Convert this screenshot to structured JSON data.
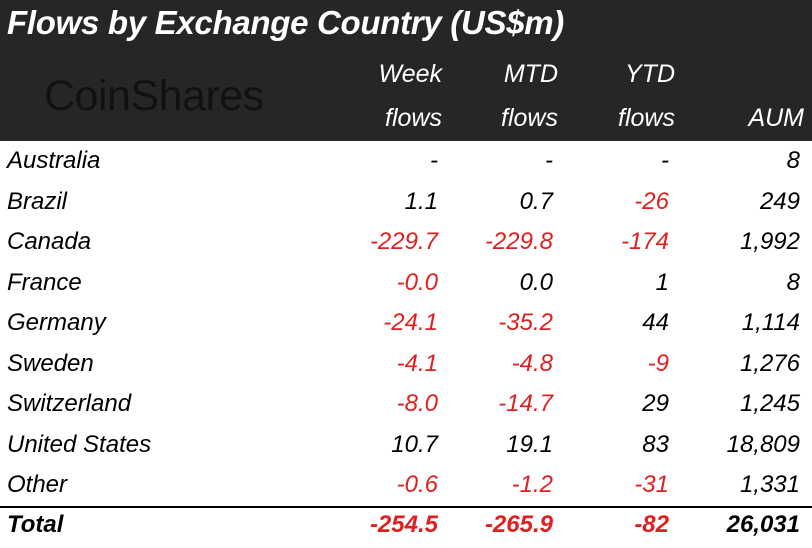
{
  "title": "Flows by Exchange Country (US$m)",
  "logo_text": "CoinShares",
  "columns": [
    {
      "line1": "Week",
      "line2": "flows"
    },
    {
      "line1": "MTD",
      "line2": "flows"
    },
    {
      "line1": "YTD",
      "line2": "flows"
    },
    {
      "line1": "",
      "line2": "AUM"
    }
  ],
  "rows": [
    {
      "country": "Australia",
      "week": "-",
      "mtd": "-",
      "ytd": "-",
      "aum": "8"
    },
    {
      "country": "Brazil",
      "week": "1.1",
      "mtd": "0.7",
      "ytd": "-26",
      "aum": "249"
    },
    {
      "country": "Canada",
      "week": "-229.7",
      "mtd": "-229.8",
      "ytd": "-174",
      "aum": "1,992"
    },
    {
      "country": "France",
      "week": "-0.0",
      "mtd": "0.0",
      "ytd": "1",
      "aum": "8"
    },
    {
      "country": "Germany",
      "week": "-24.1",
      "mtd": "-35.2",
      "ytd": "44",
      "aum": "1,114"
    },
    {
      "country": "Sweden",
      "week": "-4.1",
      "mtd": "-4.8",
      "ytd": "-9",
      "aum": "1,276"
    },
    {
      "country": "Switzerland",
      "week": "-8.0",
      "mtd": "-14.7",
      "ytd": "29",
      "aum": "1,245"
    },
    {
      "country": "United States",
      "week": "10.7",
      "mtd": "19.1",
      "ytd": "83",
      "aum": "18,809"
    },
    {
      "country": "Other",
      "week": "-0.6",
      "mtd": "-1.2",
      "ytd": "-31",
      "aum": "1,331"
    }
  ],
  "total": {
    "country": "Total",
    "week": "-254.5",
    "mtd": "-265.9",
    "ytd": "-82",
    "aum": "26,031"
  },
  "colors": {
    "header_bg": "#262626",
    "negative": "#e02020",
    "text": "#000000"
  }
}
